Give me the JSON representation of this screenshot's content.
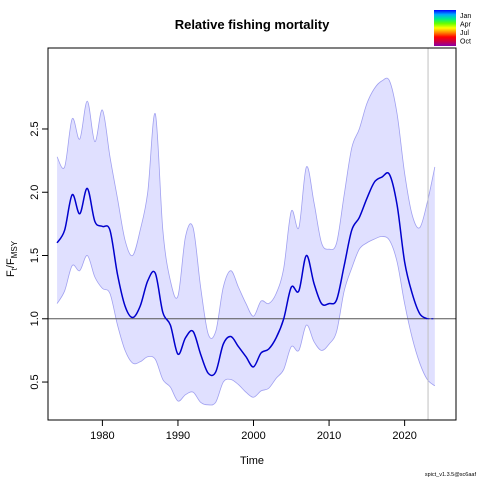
{
  "chart_data": {
    "type": "line",
    "title": "Relative fishing mortality",
    "xlabel": "Time",
    "ylabel": {
      "main": "F",
      "sub1": "t",
      "slash": "/F",
      "sub2": "MSY"
    },
    "xlim": [
      1972.8,
      2026.8
    ],
    "ylim": [
      0.2,
      3.14
    ],
    "x_ticks": [
      1980,
      1990,
      2000,
      2010,
      2020
    ],
    "y_ticks": [
      0.5,
      1.0,
      1.5,
      2.0,
      2.5
    ],
    "y_tick_labels": [
      "0.5",
      "1.0",
      "1.5",
      "2.0",
      "2.5"
    ],
    "reference_line": 1.0,
    "vertical_marker_x": 2023.1,
    "grid": false,
    "colors": {
      "estimate": "#0000cd",
      "ci_fill": "#e0e0ff",
      "ci_border": "#a0a0f0",
      "reference": "#555555",
      "marker": "#c0c0c0"
    },
    "series": [
      {
        "role": "estimate",
        "x": [
          1974.0,
          1975.0,
          1976.0,
          1977.0,
          1978.0,
          1979.0,
          1980.0,
          1981.0,
          1982.0,
          1983.0,
          1984.0,
          1985.0,
          1986.0,
          1987.0,
          1988.0,
          1989.0,
          1990.0,
          1991.0,
          1992.0,
          1993.0,
          1994.0,
          1995.0,
          1996.0,
          1997.0,
          1998.0,
          1999.0,
          2000.0,
          2001.0,
          2002.0,
          2003.0,
          2004.0,
          2005.0,
          2006.0,
          2007.0,
          2008.0,
          2009.0,
          2010.0,
          2011.0,
          2012.0,
          2013.0,
          2014.0,
          2015.0,
          2016.0,
          2017.0,
          2018.0,
          2019.0,
          2020.0,
          2021.0,
          2022.0,
          2023.0
        ],
        "y": [
          1.6,
          1.7,
          1.98,
          1.83,
          2.03,
          1.77,
          1.73,
          1.7,
          1.35,
          1.1,
          1.01,
          1.1,
          1.3,
          1.36,
          1.05,
          0.95,
          0.72,
          0.85,
          0.9,
          0.72,
          0.57,
          0.58,
          0.8,
          0.86,
          0.78,
          0.7,
          0.62,
          0.73,
          0.76,
          0.85,
          1.0,
          1.25,
          1.22,
          1.5,
          1.28,
          1.12,
          1.12,
          1.15,
          1.42,
          1.7,
          1.8,
          1.95,
          2.08,
          2.12,
          2.14,
          1.9,
          1.45,
          1.2,
          1.04,
          1.0
        ]
      },
      {
        "role": "lower_ci",
        "x": [
          1974.0,
          1975.0,
          1976.0,
          1977.0,
          1978.0,
          1979.0,
          1980.0,
          1981.0,
          1982.0,
          1983.0,
          1984.0,
          1985.0,
          1986.0,
          1987.0,
          1988.0,
          1989.0,
          1990.0,
          1991.0,
          1992.0,
          1993.0,
          1994.0,
          1995.0,
          1996.0,
          1997.0,
          1998.0,
          1999.0,
          2000.0,
          2001.0,
          2002.0,
          2003.0,
          2004.0,
          2005.0,
          2006.0,
          2007.0,
          2008.0,
          2009.0,
          2010.0,
          2011.0,
          2012.0,
          2013.0,
          2014.0,
          2015.0,
          2016.0,
          2017.0,
          2018.0,
          2019.0,
          2020.0,
          2021.0,
          2022.0,
          2023.0,
          2024.0
        ],
        "y": [
          1.12,
          1.22,
          1.42,
          1.38,
          1.5,
          1.33,
          1.24,
          1.2,
          0.95,
          0.75,
          0.65,
          0.66,
          0.7,
          0.68,
          0.52,
          0.46,
          0.35,
          0.4,
          0.42,
          0.34,
          0.32,
          0.34,
          0.5,
          0.52,
          0.48,
          0.42,
          0.38,
          0.43,
          0.45,
          0.53,
          0.6,
          0.78,
          0.75,
          0.95,
          0.82,
          0.75,
          0.8,
          0.9,
          1.22,
          1.4,
          1.55,
          1.6,
          1.63,
          1.65,
          1.62,
          1.45,
          1.12,
          0.85,
          0.65,
          0.52,
          0.47
        ]
      },
      {
        "role": "upper_ci",
        "x": [
          1974.0,
          1975.0,
          1976.0,
          1977.0,
          1978.0,
          1979.0,
          1980.0,
          1981.0,
          1982.0,
          1983.0,
          1984.0,
          1985.0,
          1986.0,
          1987.0,
          1988.0,
          1989.0,
          1990.0,
          1991.0,
          1992.0,
          1993.0,
          1994.0,
          1995.0,
          1996.0,
          1997.0,
          1998.0,
          1999.0,
          2000.0,
          2001.0,
          2002.0,
          2003.0,
          2004.0,
          2005.0,
          2006.0,
          2007.0,
          2008.0,
          2009.0,
          2010.0,
          2011.0,
          2012.0,
          2013.0,
          2014.0,
          2015.0,
          2016.0,
          2017.0,
          2018.0,
          2019.0,
          2020.0,
          2021.0,
          2022.0,
          2023.0,
          2024.0
        ],
        "y": [
          2.28,
          2.2,
          2.58,
          2.42,
          2.72,
          2.4,
          2.65,
          2.28,
          1.95,
          1.62,
          1.5,
          1.7,
          2.0,
          2.62,
          1.7,
          1.3,
          1.18,
          1.65,
          1.72,
          1.25,
          0.88,
          0.9,
          1.25,
          1.38,
          1.25,
          1.12,
          1.02,
          1.14,
          1.12,
          1.2,
          1.4,
          1.85,
          1.72,
          2.2,
          1.92,
          1.6,
          1.55,
          1.6,
          1.98,
          2.35,
          2.5,
          2.7,
          2.82,
          2.88,
          2.88,
          2.62,
          2.15,
          1.82,
          1.72,
          1.92,
          2.2
        ]
      }
    ],
    "legend": {
      "placement": "top-right",
      "entries": [
        {
          "label": "Jan",
          "color": "#1030ff"
        },
        {
          "label": "Apr",
          "color": "#00c0ff"
        },
        {
          "label": "Jul",
          "color": "#e0e000"
        },
        {
          "label": "Oct",
          "color": "#ff2000"
        }
      ],
      "gradient": [
        "#0000ff",
        "#00aaff",
        "#00ee88",
        "#66ff00",
        "#ffff00",
        "#ff8800",
        "#ff0000",
        "#cc0044",
        "#8800aa"
      ]
    },
    "footnote": "spict_v1.3.5@sc6aaf"
  }
}
